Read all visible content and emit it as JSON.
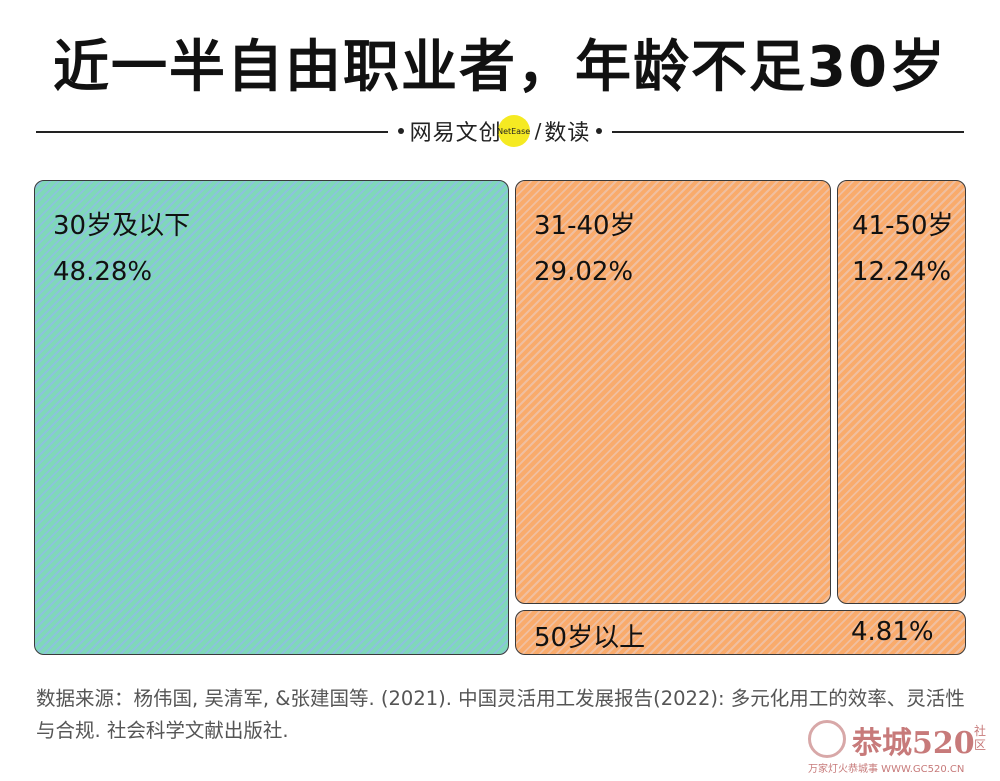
{
  "title": "近一半自由职业者，年龄不足30岁",
  "brand": {
    "name_cn": "网易文创",
    "logo_text": "NetEase",
    "slash": "/",
    "section": "数读"
  },
  "chart_data": {
    "type": "treemap",
    "title": "近一半自由职业者，年龄不足30岁",
    "unit": "%",
    "categories": [
      "30岁及以下",
      "31-40岁",
      "41-50岁",
      "50岁以上"
    ],
    "values": [
      48.28,
      29.02,
      12.24,
      4.81
    ],
    "value_labels": [
      "48.28%",
      "29.02%",
      "12.24%",
      "4.81%"
    ],
    "colors": [
      "#7fd8b9",
      "#f9ab6c",
      "#f9ab6c",
      "#f9ab6c"
    ]
  },
  "source": "数据来源：杨伟国, 吴清军, &张建国等. (2021). 中国灵活用工发展报告(2022): 多元化用工的效率、灵活性与合规. 社会科学文献出版社.",
  "watermark": {
    "main": "恭城520",
    "side": "社区",
    "sub": "万家灯火恭城事 WWW.GC520.CN"
  }
}
